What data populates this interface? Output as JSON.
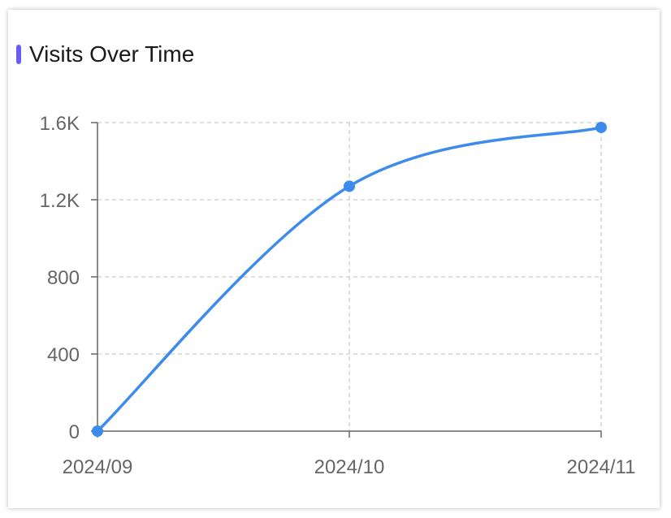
{
  "header": {
    "title": "Visits Over Time"
  },
  "colors": {
    "accent": "#6a5cf0",
    "series": "#3d8bea",
    "grid": "#cccccc",
    "axis": "#666666"
  },
  "chart_data": {
    "type": "line",
    "title": "Visits Over Time",
    "x": [
      "2024/09",
      "2024/10",
      "2024/11"
    ],
    "series": [
      {
        "values": [
          0,
          1270,
          1575
        ]
      }
    ],
    "ylim": [
      0,
      1600
    ],
    "yticks": [
      0,
      400,
      800,
      1200,
      1600
    ],
    "ytick_labels": [
      "0",
      "400",
      "800",
      "1.2K",
      "1.6K"
    ],
    "xlabel": "",
    "ylabel": "",
    "grid": true,
    "smooth": true,
    "legend": "none"
  }
}
